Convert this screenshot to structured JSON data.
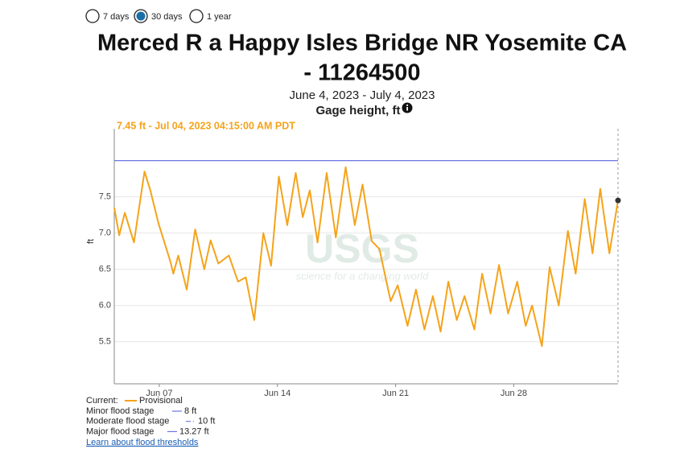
{
  "range_options": [
    {
      "label": "7 days",
      "selected": false
    },
    {
      "label": "30 days",
      "selected": true
    },
    {
      "label": "1 year",
      "selected": false
    }
  ],
  "chart_data": {
    "type": "line",
    "title_lines": [
      "Merced R a Happy Isles Bridge NR Yosemite CA",
      "- 11264500"
    ],
    "subtitle": "June 4, 2023 - July 4, 2023",
    "parameter": "Gage height, ft",
    "hover_label": "7.45 ft - Jul 04, 2023 04:15:00 AM PDT",
    "y_label": "ft",
    "watermark": {
      "logo": "USGS",
      "tagline": "science for a changing world"
    },
    "x": [
      "2023-06-04T08:00",
      "2023-06-04T15:00",
      "2023-06-04T23:00",
      "2023-06-05T12:00",
      "2023-06-06T03:00",
      "2023-06-06T11:00",
      "2023-06-06T23:00",
      "2023-06-07T16:00",
      "2023-06-07T20:00",
      "2023-06-08T03:00",
      "2023-06-08T15:00",
      "2023-06-09T03:00",
      "2023-06-09T16:00",
      "2023-06-10T01:00",
      "2023-06-10T12:00",
      "2023-06-11T03:00",
      "2023-06-11T16:00",
      "2023-06-12T03:00",
      "2023-06-12T15:00",
      "2023-06-13T04:00",
      "2023-06-13T15:00",
      "2023-06-14T02:00",
      "2023-06-14T14:00",
      "2023-06-15T02:00",
      "2023-06-15T12:00",
      "2023-06-15T22:00",
      "2023-06-16T09:00",
      "2023-06-16T22:00",
      "2023-06-17T11:00",
      "2023-06-18T01:00",
      "2023-06-18T14:00",
      "2023-06-19T01:00",
      "2023-06-19T14:00",
      "2023-06-20T01:00",
      "2023-06-20T17:00",
      "2023-06-21T03:00",
      "2023-06-21T17:00",
      "2023-06-22T05:00",
      "2023-06-22T17:00",
      "2023-06-23T05:00",
      "2023-06-23T16:00",
      "2023-06-24T03:00",
      "2023-06-24T15:00",
      "2023-06-25T02:00",
      "2023-06-25T16:00",
      "2023-06-26T03:00",
      "2023-06-26T15:00",
      "2023-06-27T03:00",
      "2023-06-27T16:00",
      "2023-06-28T05:00",
      "2023-06-28T17:00",
      "2023-06-29T02:00",
      "2023-06-29T16:00",
      "2023-06-30T03:00",
      "2023-06-30T16:00",
      "2023-07-01T05:00",
      "2023-07-01T16:00",
      "2023-07-02T05:00",
      "2023-07-02T16:00",
      "2023-07-03T03:00",
      "2023-07-03T16:00",
      "2023-07-04T04:15"
    ],
    "series": [
      {
        "name": "Provisional",
        "color": "#f5a31a",
        "values": [
          7.35,
          6.97,
          7.28,
          6.87,
          7.85,
          7.6,
          7.13,
          6.6,
          6.44,
          6.69,
          6.22,
          7.05,
          6.5,
          6.9,
          6.58,
          6.69,
          6.33,
          6.39,
          5.8,
          7.0,
          6.55,
          7.78,
          7.11,
          7.83,
          7.22,
          7.59,
          6.87,
          7.83,
          6.94,
          7.91,
          7.11,
          7.67,
          6.89,
          6.78,
          6.06,
          6.28,
          5.72,
          6.22,
          5.67,
          6.13,
          5.64,
          6.33,
          5.8,
          6.13,
          5.67,
          6.44,
          5.89,
          6.56,
          5.89,
          6.33,
          5.72,
          6.0,
          5.44,
          6.53,
          6.0,
          7.03,
          6.44,
          7.47,
          6.72,
          7.61,
          6.72,
          7.45
        ]
      }
    ],
    "xlim": [
      "2023-06-04T08:00",
      "2023-07-04T04:15"
    ],
    "xticks": [
      {
        "value": "2023-06-07T00:00",
        "label": "Jun 07"
      },
      {
        "value": "2023-06-14T00:00",
        "label": "Jun 14"
      },
      {
        "value": "2023-06-21T00:00",
        "label": "Jun 21"
      },
      {
        "value": "2023-06-28T00:00",
        "label": "Jun 28"
      }
    ],
    "ylim": [
      4.92,
      8.44
    ],
    "yticks": [
      5.5,
      {
        "value": 6,
        "label": "6.0"
      },
      6.5,
      {
        "value": 7,
        "label": "7.0"
      },
      7.5
    ],
    "grid": true,
    "legend_title": "Current:",
    "flood_stages": [
      {
        "name": "Minor flood stage",
        "value": 8,
        "label": "8 ft",
        "color": "#6a75e0",
        "dash": "none"
      },
      {
        "name": "Moderate flood stage",
        "value": 10,
        "label": "10 ft",
        "color": "#6a75e0",
        "dash": "6,3,1,3"
      },
      {
        "name": "Major flood stage",
        "value": 13.27,
        "label": "13.27 ft",
        "color": "#6a75e0",
        "dash": "none"
      }
    ],
    "link": "Learn about flood thresholds"
  }
}
